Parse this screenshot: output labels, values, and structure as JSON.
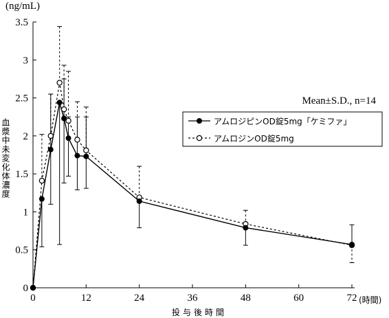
{
  "chart_data": {
    "type": "line",
    "title": "",
    "ylabel": "血漿中未変化体濃度",
    "y_unit": "(ng/mL)",
    "xlabel": "投与後時間",
    "x_unit": "(時間)",
    "annotation": "Mean±S.D., n=14",
    "xlim": [
      0,
      72
    ],
    "ylim": [
      0,
      3.5
    ],
    "x_ticks": [
      0,
      12,
      24,
      36,
      48,
      60,
      72
    ],
    "x_tick_labels": [
      "0",
      "12",
      "24",
      "36",
      "48",
      "60",
      "72"
    ],
    "y_ticks": [
      0,
      0.5,
      1,
      1.5,
      2,
      2.5,
      3,
      3.5
    ],
    "y_tick_labels": [
      "0",
      "0.5",
      "1",
      "1.5",
      "2",
      "2.5",
      "3",
      "3.5"
    ],
    "grid": false,
    "legend_position": "right",
    "series": [
      {
        "name": "アムロジピンOD錠5mg「ケミファ」",
        "marker": "filled-circle",
        "line": "solid",
        "x": [
          0,
          2,
          4,
          6,
          7,
          8,
          10,
          12,
          24,
          48,
          72
        ],
        "y": [
          0,
          1.17,
          1.82,
          2.44,
          2.23,
          1.97,
          1.74,
          1.73,
          1.14,
          0.79,
          0.57
        ],
        "upper": [
          0,
          1.17,
          2.55,
          2.44,
          2.75,
          2.25,
          2.25,
          2.25,
          1.14,
          0.79,
          0.83
        ],
        "lower": [
          0,
          0.54,
          1.1,
          0.57,
          1.38,
          1.47,
          1.29,
          1.31,
          0.79,
          0.56,
          0.57
        ]
      },
      {
        "name": "アムロジンOD錠5mg",
        "marker": "open-circle",
        "line": "dashed",
        "x": [
          0,
          2,
          4,
          6,
          7,
          8,
          10,
          12,
          24,
          48,
          72
        ],
        "y": [
          0,
          1.41,
          2.0,
          2.7,
          2.35,
          2.2,
          1.95,
          1.81,
          1.19,
          0.84,
          0.56
        ],
        "upper": [
          0,
          2.02,
          2.55,
          3.44,
          2.93,
          2.85,
          2.45,
          2.38,
          1.6,
          1.02,
          0.56
        ],
        "lower": [
          0,
          1.41,
          2.0,
          2.7,
          2.35,
          2.2,
          1.95,
          1.81,
          1.19,
          0.84,
          0.33
        ]
      }
    ]
  }
}
